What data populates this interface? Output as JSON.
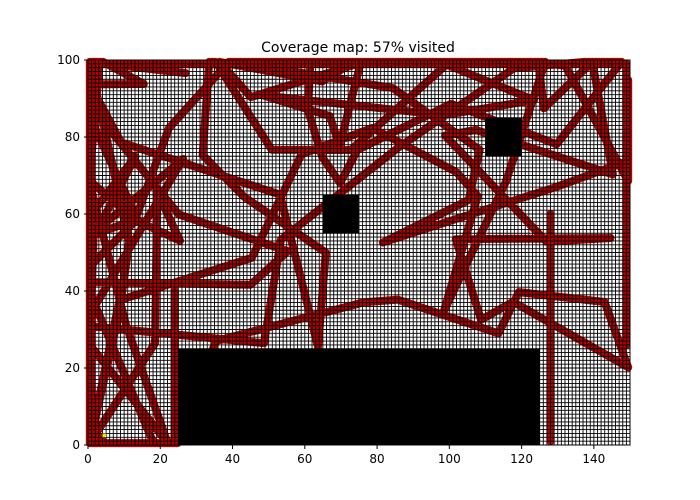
{
  "chart_data": {
    "type": "heatmap",
    "title": "Coverage map: 57% visited",
    "xlabel": "",
    "ylabel": "",
    "xlim": [
      0,
      150
    ],
    "ylim": [
      0,
      100
    ],
    "x_ticks": [
      0,
      20,
      40,
      60,
      80,
      100,
      120,
      140
    ],
    "y_ticks": [
      0,
      20,
      40,
      60,
      80,
      100
    ],
    "grid": false,
    "visited_fraction": 0.57,
    "cell_states": [
      "unvisited",
      "visited",
      "obstacle",
      "start"
    ],
    "colors": {
      "unvisited": "#ffffff",
      "visited": "#b30000",
      "obstacle": "#000000",
      "cell_border": "#000000",
      "start": "#e6e600"
    },
    "obstacles": [
      {
        "x0": 25,
        "x1": 125,
        "y0": 0,
        "y1": 25
      },
      {
        "x0": 65,
        "x1": 75,
        "y0": 55,
        "y1": 65
      },
      {
        "x0": 110,
        "x1": 120,
        "y0": 75,
        "y1": 85
      }
    ],
    "start": {
      "x": 4,
      "y": 2
    }
  }
}
